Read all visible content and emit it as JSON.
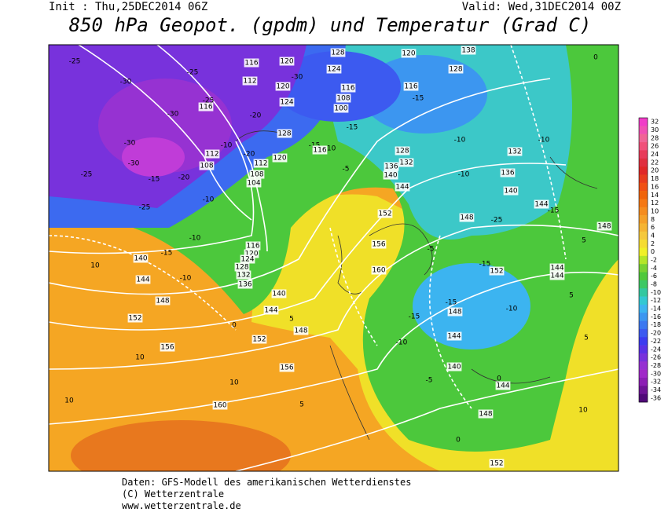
{
  "header": {
    "init": "Init : Thu,25DEC2014 06Z",
    "valid": "Valid: Wed,31DEC2014 00Z",
    "title": "850 hPa Geopot. (gpdm) und Temperatur (Grad C)"
  },
  "colorbar": {
    "levels": [
      32,
      30,
      28,
      26,
      24,
      22,
      20,
      18,
      16,
      14,
      12,
      10,
      8,
      6,
      4,
      2,
      0,
      -2,
      -4,
      -6,
      -8,
      -10,
      -12,
      -14,
      -16,
      -18,
      -20,
      -22,
      -24,
      -26,
      -28,
      -30,
      -32,
      -34,
      -36
    ],
    "colors": [
      "#f03cc8",
      "#f050b4",
      "#f06496",
      "#f0507a",
      "#e83c5a",
      "#e03040",
      "#e02828",
      "#e83c1e",
      "#f05014",
      "#f0640a",
      "#f57814",
      "#f58c1e",
      "#f5a028",
      "#f5b432",
      "#f5c83c",
      "#f5dc32",
      "#f0f028",
      "#b4e628",
      "#78d232",
      "#50c83c",
      "#3cc864",
      "#32c8a0",
      "#32c8d2",
      "#3cb4f0",
      "#3c96f0",
      "#3c78f0",
      "#3c5af0",
      "#3c3cf0",
      "#5a32e6",
      "#7832dc",
      "#9632d2",
      "#a028c8",
      "#8c1eb4",
      "#6e1496",
      "#500a78"
    ]
  },
  "map_labels": [
    -25,
    -30,
    -25,
    -30,
    116,
    120,
    112,
    120,
    124,
    -30,
    128,
    124,
    116,
    108,
    100,
    -15,
    120,
    128,
    138,
    0,
    -15,
    116,
    -25,
    116,
    -20,
    128,
    -10,
    -20,
    112,
    120,
    -15,
    -10,
    116,
    -5,
    128,
    132,
    136,
    140,
    144,
    -10,
    -10,
    132,
    -10,
    136,
    140,
    144,
    -15,
    148,
    -25,
    148,
    -30,
    -30,
    -25,
    -15,
    -20,
    -25,
    112,
    108,
    104,
    108,
    -10,
    -10,
    -15,
    140,
    -10,
    144,
    148,
    10,
    152,
    156,
    10,
    10,
    10,
    160,
    156,
    5,
    140,
    144,
    5,
    148,
    152,
    0,
    116,
    120,
    124,
    128,
    132,
    136,
    152,
    156,
    160,
    -5,
    -15,
    152,
    144,
    144,
    -15,
    148,
    -15,
    -10,
    144,
    -10,
    140,
    -5,
    0,
    144,
    148,
    0,
    152,
    5,
    5,
    5,
    10
  ],
  "footer": [
    "Daten: GFS-Modell des amerikanischen Wetterdienstes",
    "(C) Wetterzentrale",
    "www.wetterzentrale.de"
  ]
}
